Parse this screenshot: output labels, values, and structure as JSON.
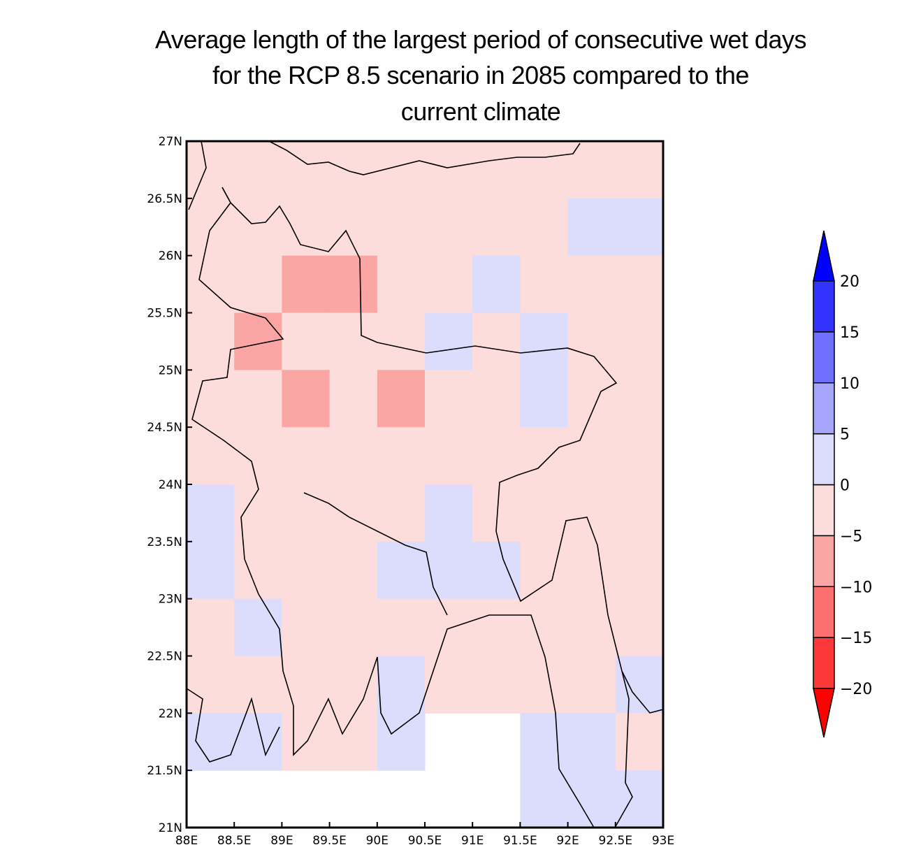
{
  "title_lines": [
    "Average length of the largest period of consecutive wet days",
    "for the RCP 8.5 scenario in 2085 compared to the",
    "current climate"
  ],
  "chart_data": {
    "type": "heatmap",
    "title": "Average length of the largest period of consecutive wet days for the RCP 8.5 scenario in 2085 compared to the current climate",
    "lon_range": [
      88,
      93
    ],
    "lat_range": [
      21,
      27
    ],
    "cell_size_deg": 0.5,
    "x_ticks": [
      "88E",
      "88.5E",
      "89E",
      "89.5E",
      "90E",
      "90.5E",
      "91E",
      "91.5E",
      "92E",
      "92.5E",
      "93E"
    ],
    "y_ticks": [
      "27N",
      "26.5N",
      "26N",
      "25.5N",
      "25N",
      "24.5N",
      "24N",
      "23.5N",
      "23N",
      "22.5N",
      "22N",
      "21.5N",
      "21N"
    ],
    "rows_note": "rows from north (26.5-27N) to south (21-21.5N), columns from west (88-88.5E) to east (92.5-93E); value is class midpoint, null = no data",
    "values": [
      [
        -2.5,
        -2.5,
        -2.5,
        -2.5,
        -2.5,
        -2.5,
        -2.5,
        -2.5,
        -2.5,
        -2.5
      ],
      [
        -2.5,
        -2.5,
        -2.5,
        -2.5,
        -2.5,
        -2.5,
        -2.5,
        -2.5,
        2.5,
        2.5
      ],
      [
        -2.5,
        -2.5,
        -7.5,
        -7.5,
        -2.5,
        -2.5,
        2.5,
        -2.5,
        -2.5,
        -2.5
      ],
      [
        -2.5,
        -7.5,
        -2.5,
        -2.5,
        -2.5,
        2.5,
        -2.5,
        2.5,
        -2.5,
        -2.5
      ],
      [
        -2.5,
        -2.5,
        -7.5,
        -2.5,
        -7.5,
        -2.5,
        -2.5,
        2.5,
        -2.5,
        -2.5
      ],
      [
        -2.5,
        -2.5,
        -2.5,
        -2.5,
        -2.5,
        -2.5,
        -2.5,
        -2.5,
        -2.5,
        -2.5
      ],
      [
        2.5,
        -2.5,
        -2.5,
        -2.5,
        -2.5,
        2.5,
        -2.5,
        -2.5,
        -2.5,
        -2.5
      ],
      [
        2.5,
        -2.5,
        -2.5,
        -2.5,
        2.5,
        2.5,
        2.5,
        -2.5,
        -2.5,
        -2.5
      ],
      [
        -2.5,
        2.5,
        -2.5,
        -2.5,
        -2.5,
        -2.5,
        -2.5,
        -2.5,
        -2.5,
        -2.5
      ],
      [
        -2.5,
        -2.5,
        -2.5,
        -2.5,
        2.5,
        -2.5,
        -2.5,
        -2.5,
        -2.5,
        2.5
      ],
      [
        2.5,
        2.5,
        -2.5,
        -2.5,
        2.5,
        null,
        null,
        2.5,
        2.5,
        -2.5
      ],
      [
        null,
        null,
        null,
        null,
        null,
        null,
        null,
        2.5,
        2.5,
        2.5
      ]
    ],
    "colorbar": {
      "levels": [
        -20,
        -15,
        -10,
        -5,
        0,
        5,
        10,
        15,
        20
      ],
      "labels": [
        "-20",
        "-15",
        "-10",
        "-5",
        "0",
        "5",
        "10",
        "15",
        "20"
      ],
      "colors": [
        "#ff0000",
        "#fc3838",
        "#fc7070",
        "#fca5a5",
        "#fddcdc",
        "#dcdcfc",
        "#a6a6ff",
        "#7070ff",
        "#3333ff",
        "#0000ff"
      ],
      "extend": "both"
    }
  }
}
